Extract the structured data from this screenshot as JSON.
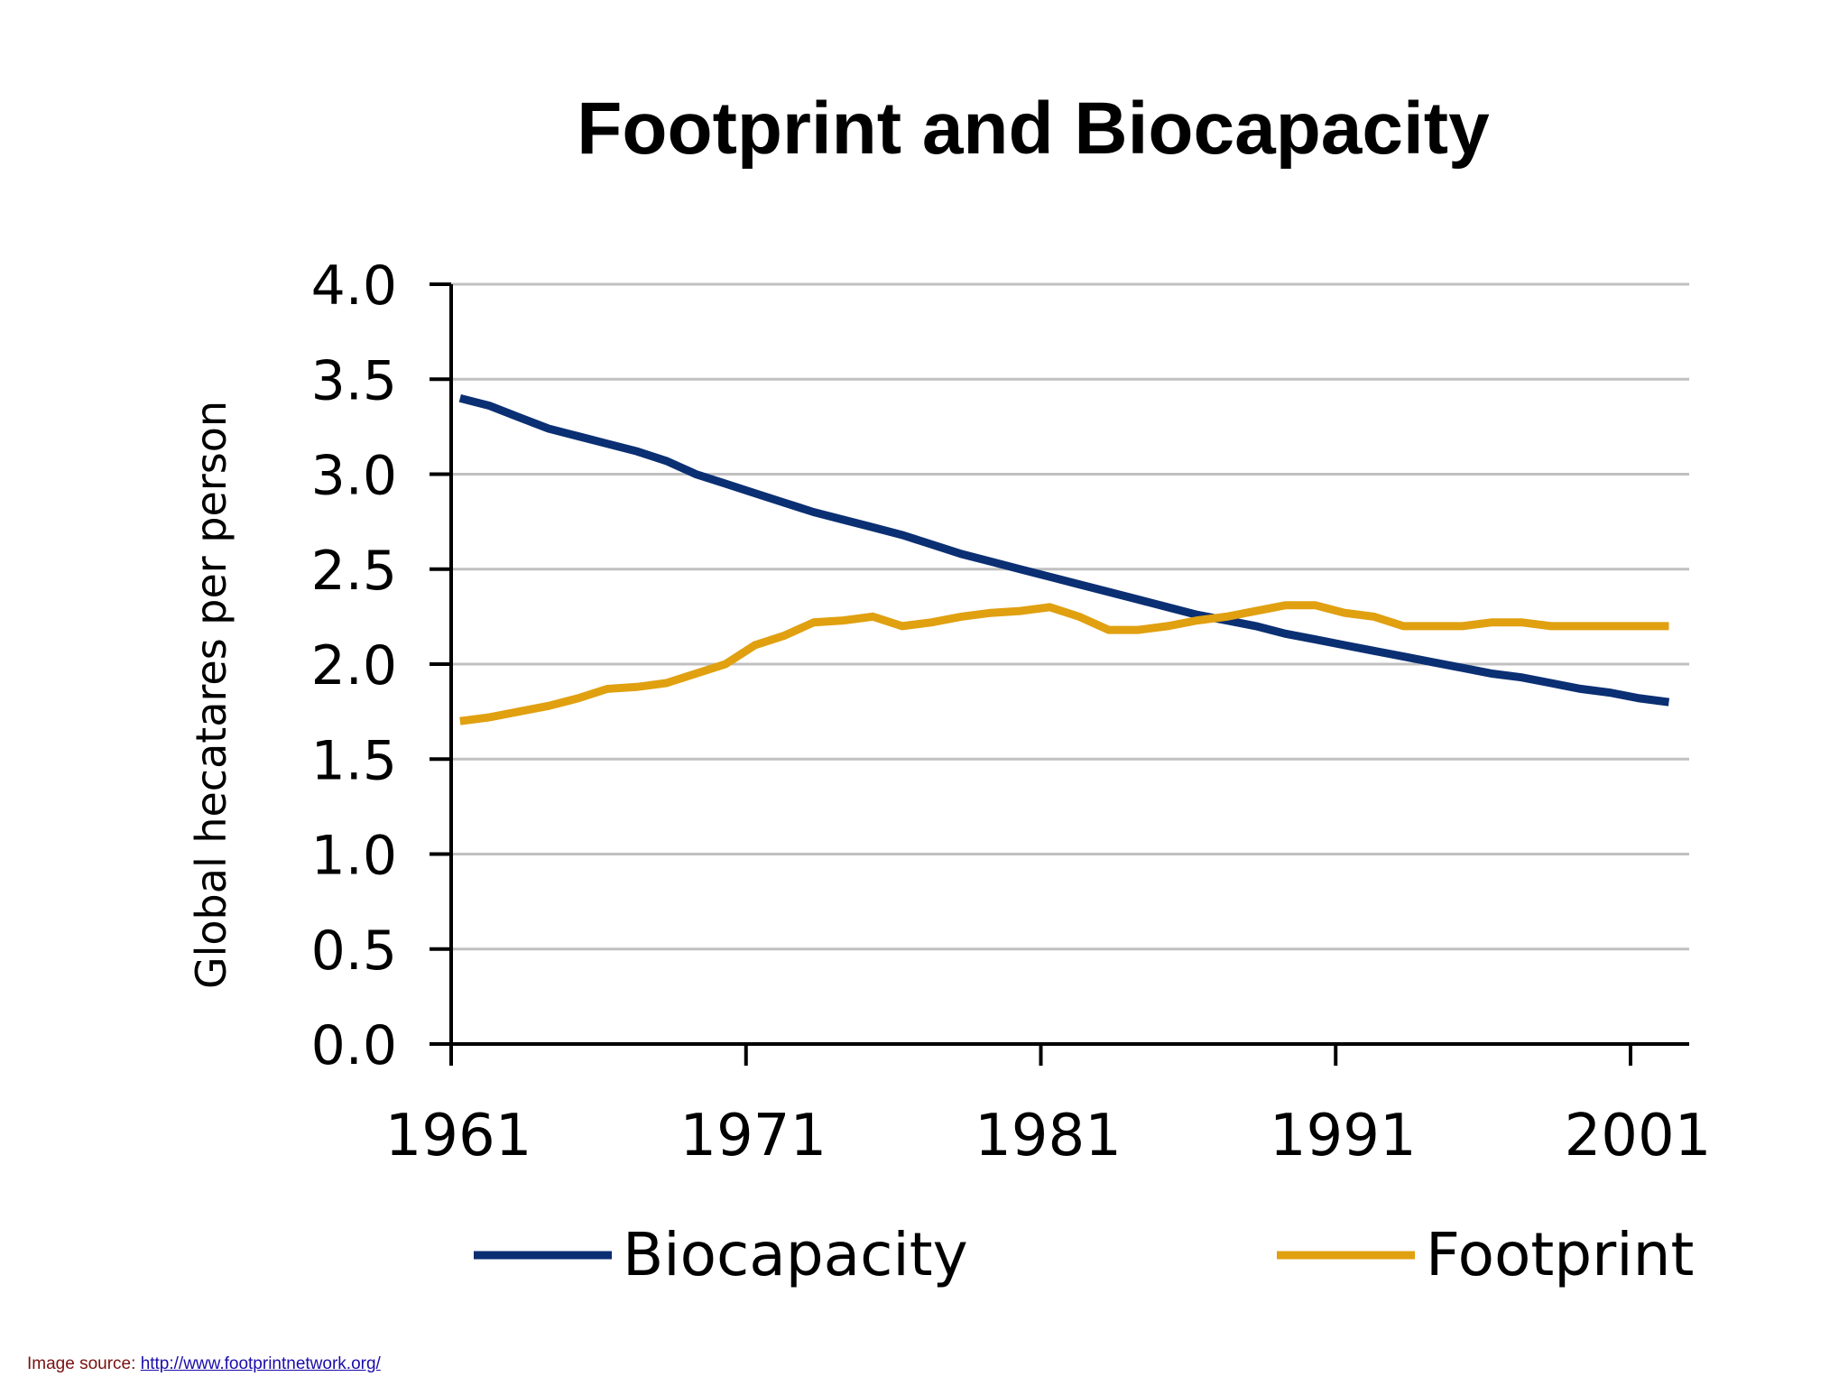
{
  "chart_data": {
    "type": "line",
    "title": "Footprint and Biocapacity",
    "xlabel": "",
    "ylabel": "Global hecatares per person",
    "xlim": [
      1961,
      2003
    ],
    "ylim": [
      0,
      4.0
    ],
    "x_ticks": [
      1961,
      1971,
      1981,
      1991,
      2001
    ],
    "x_tick_labels": [
      "1961",
      "1971",
      "1981",
      "1991",
      "2001"
    ],
    "y_ticks": [
      0.0,
      0.5,
      1.0,
      1.5,
      2.0,
      2.5,
      3.0,
      3.5,
      4.0
    ],
    "y_tick_labels": [
      "0.0",
      "0.5",
      "1.0",
      "1.5",
      "2.0",
      "2.5",
      "3.0",
      "3.5",
      "4.0"
    ],
    "grid": true,
    "legend": "bottom",
    "x": [
      1961,
      1962,
      1963,
      1964,
      1965,
      1966,
      1967,
      1968,
      1969,
      1970,
      1971,
      1972,
      1973,
      1974,
      1975,
      1976,
      1977,
      1978,
      1979,
      1980,
      1981,
      1982,
      1983,
      1984,
      1985,
      1986,
      1987,
      1988,
      1989,
      1990,
      1991,
      1992,
      1993,
      1994,
      1995,
      1996,
      1997,
      1998,
      1999,
      2000,
      2001,
      2002
    ],
    "series": [
      {
        "name": "Biocapacity",
        "color": "#0b2f73",
        "values": [
          3.4,
          3.36,
          3.3,
          3.24,
          3.2,
          3.16,
          3.12,
          3.07,
          3.0,
          2.95,
          2.9,
          2.85,
          2.8,
          2.76,
          2.72,
          2.68,
          2.63,
          2.58,
          2.54,
          2.5,
          2.46,
          2.42,
          2.38,
          2.34,
          2.3,
          2.26,
          2.23,
          2.2,
          2.16,
          2.13,
          2.1,
          2.07,
          2.04,
          2.01,
          1.98,
          1.95,
          1.93,
          1.9,
          1.87,
          1.85,
          1.82,
          1.8
        ]
      },
      {
        "name": "Footprint",
        "color": "#e0a010",
        "values": [
          1.7,
          1.72,
          1.75,
          1.78,
          1.82,
          1.87,
          1.88,
          1.9,
          1.95,
          2.0,
          2.1,
          2.15,
          2.22,
          2.23,
          2.25,
          2.2,
          2.22,
          2.25,
          2.27,
          2.28,
          2.3,
          2.25,
          2.18,
          2.18,
          2.2,
          2.23,
          2.25,
          2.28,
          2.31,
          2.31,
          2.27,
          2.25,
          2.2,
          2.2,
          2.2,
          2.22,
          2.22,
          2.2,
          2.2,
          2.2,
          2.2,
          2.2
        ]
      }
    ]
  },
  "footer": {
    "source_label": "Image source:",
    "source_link": "http://www.footprintnetwork.org/"
  }
}
